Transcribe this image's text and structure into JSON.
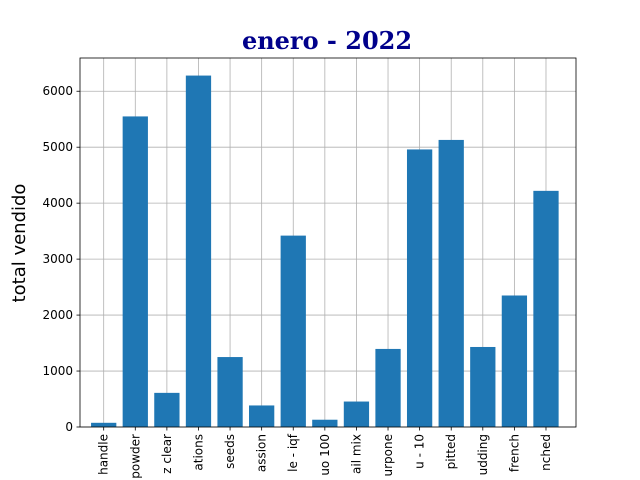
{
  "chart_data": {
    "type": "bar",
    "title": "enero - 2022",
    "xlabel": "",
    "ylabel": "total vendido",
    "categories": [
      "handle",
      "powder",
      "z clear",
      "ations",
      "seeds",
      "assion",
      "le - iqf",
      "uo 100",
      "ail mix",
      "urpone",
      "u - 10",
      "pitted",
      "udding",
      "french",
      "nched"
    ],
    "values": [
      75,
      5550,
      610,
      6280,
      1250,
      385,
      3420,
      130,
      455,
      1395,
      4960,
      5130,
      1430,
      2350,
      4220
    ],
    "ylim": [
      0,
      6594
    ],
    "yticks": [
      0,
      1000,
      2000,
      3000,
      4000,
      5000,
      6000
    ],
    "grid": true,
    "colors": {
      "bar": "#1f77b4",
      "title": "#00008b",
      "grid": "#b0b0b0"
    }
  }
}
